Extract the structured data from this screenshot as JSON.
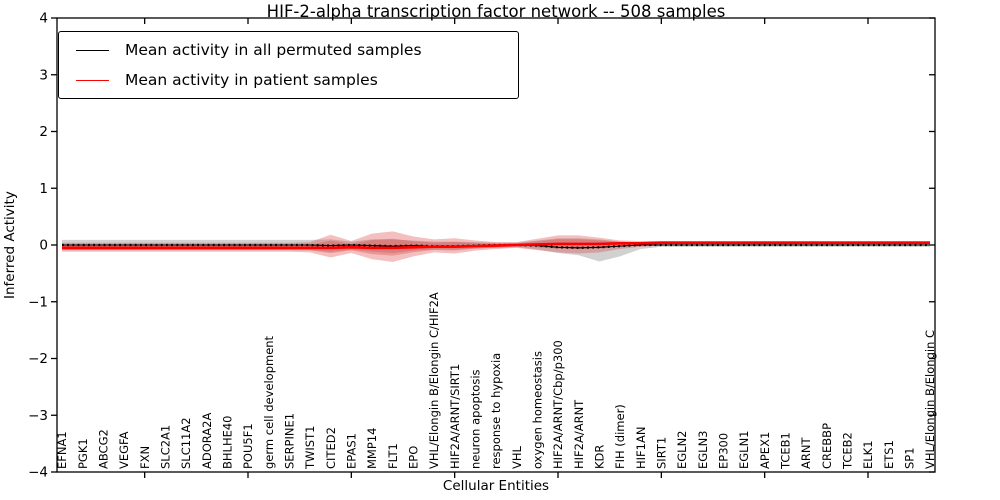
{
  "title": "HIF-2-alpha transcription factor network -- 508 samples",
  "legend": {
    "items": [
      {
        "label": "Mean activity in all permuted samples",
        "color": "#000000"
      },
      {
        "label": "Mean activity in patient samples",
        "color": "#ff0000"
      }
    ]
  },
  "axes": {
    "xlabel": "Cellular Entities",
    "ylabel": "Inferred Activity",
    "ytick_labels": [
      "4",
      "3",
      "2",
      "1",
      "0",
      "−1",
      "−2",
      "−3",
      "−4"
    ]
  },
  "chart_data": {
    "type": "line",
    "title": "HIF-2-alpha transcription factor network -- 508 samples",
    "xlabel": "Cellular Entities",
    "ylabel": "Inferred Activity",
    "ylim": [
      -4,
      4
    ],
    "yticks": [
      4,
      3,
      2,
      1,
      0,
      -1,
      -2,
      -3,
      -4
    ],
    "grid": false,
    "legend_position": "upper left",
    "x_major_tick_indices": [
      4,
      9,
      14,
      19,
      24,
      29,
      34,
      39
    ],
    "categories": [
      "EFNA1",
      "PGK1",
      "ABCG2",
      "VEGFA",
      "FXN",
      "SLC2A1",
      "SLC11A2",
      "ADORA2A",
      "BHLHE40",
      "POU5F1",
      "germ cell development",
      "SERPINE1",
      "TWIST1",
      "CITED2",
      "EPAS1",
      "MMP14",
      "FLT1",
      "EPO",
      "VHL/Elongin B/Elongin C/HIF2A",
      "HIF2A/ARNT/SIRT1",
      "neuron apoptosis",
      "response to hypoxia",
      "VHL",
      "oxygen homeostasis",
      "HIF2A/ARNT/Cbp/p300",
      "HIF2A/ARNT",
      "KDR",
      "FIH (dimer)",
      "HIF1AN",
      "SIRT1",
      "EGLN2",
      "EGLN3",
      "EP300",
      "EGLN1",
      "APEX1",
      "TCEB1",
      "ARNT",
      "CREBBP",
      "TCEB2",
      "ELK1",
      "ETS1",
      "SP1",
      "VHL/Elongin B/Elongin C"
    ],
    "series": [
      {
        "name": "Mean activity in all permuted samples",
        "color": "#000000",
        "style": "dotted",
        "values": [
          0,
          0,
          0,
          0,
          0,
          0,
          0,
          0,
          0,
          0,
          0,
          0,
          0,
          -0.01,
          0,
          -0.01,
          -0.02,
          -0.01,
          -0.02,
          -0.02,
          -0.01,
          0,
          0,
          -0.01,
          -0.04,
          -0.05,
          -0.04,
          -0.02,
          0,
          0,
          0,
          0,
          0,
          0,
          0,
          0,
          0,
          0,
          0,
          0,
          0,
          0,
          0
        ]
      },
      {
        "name": "Mean activity in patient samples",
        "color": "#ff0000",
        "style": "solid",
        "values": [
          -0.05,
          -0.05,
          -0.05,
          -0.05,
          -0.05,
          -0.05,
          -0.05,
          -0.05,
          -0.05,
          -0.05,
          -0.05,
          -0.05,
          -0.05,
          -0.05,
          -0.04,
          -0.05,
          -0.05,
          -0.04,
          -0.03,
          -0.03,
          -0.02,
          -0.01,
          0,
          0.01,
          0.02,
          0.02,
          0.02,
          0.03,
          0.03,
          0.04,
          0.04,
          0.04,
          0.04,
          0.04,
          0.04,
          0.04,
          0.04,
          0.04,
          0.04,
          0.04,
          0.04,
          0.04,
          0.04
        ]
      }
    ],
    "bands": [
      {
        "name": "permuted-sample-range",
        "color": "#999999",
        "opacity": 0.45,
        "lower": [
          -0.09,
          -0.09,
          -0.09,
          -0.09,
          -0.09,
          -0.09,
          -0.09,
          -0.09,
          -0.09,
          -0.09,
          -0.09,
          -0.09,
          -0.09,
          -0.12,
          -0.08,
          -0.12,
          -0.14,
          -0.1,
          -0.08,
          -0.08,
          -0.06,
          -0.05,
          -0.04,
          -0.08,
          -0.14,
          -0.18,
          -0.29,
          -0.2,
          -0.07,
          -0.03,
          -0.03,
          -0.03,
          -0.03,
          -0.03,
          -0.03,
          -0.03,
          -0.03,
          -0.03,
          -0.03,
          -0.03,
          -0.03,
          -0.03,
          -0.03
        ],
        "upper": [
          0.09,
          0.09,
          0.09,
          0.09,
          0.09,
          0.09,
          0.09,
          0.09,
          0.09,
          0.09,
          0.09,
          0.09,
          0.09,
          0.1,
          0.06,
          0.1,
          0.1,
          0.08,
          0.06,
          0.06,
          0.05,
          0.04,
          0.04,
          0.08,
          0.12,
          0.12,
          0.1,
          0.06,
          0.04,
          0.04,
          0.04,
          0.04,
          0.04,
          0.04,
          0.04,
          0.04,
          0.04,
          0.04,
          0.04,
          0.04,
          0.04,
          0.04,
          0.04
        ]
      },
      {
        "name": "patient-sample-range",
        "color": "#dd4444",
        "opacity": 0.34,
        "lower": [
          -0.12,
          -0.12,
          -0.12,
          -0.12,
          -0.12,
          -0.12,
          -0.12,
          -0.12,
          -0.12,
          -0.12,
          -0.12,
          -0.12,
          -0.13,
          -0.22,
          -0.14,
          -0.25,
          -0.3,
          -0.2,
          -0.13,
          -0.15,
          -0.1,
          -0.07,
          -0.05,
          -0.09,
          -0.13,
          -0.15,
          -0.13,
          -0.07,
          -0.03,
          -0.01,
          0,
          0,
          0,
          0,
          0,
          0,
          0,
          0,
          0,
          0,
          0,
          0,
          0
        ],
        "upper": [
          0.04,
          0.04,
          0.04,
          0.04,
          0.04,
          0.04,
          0.04,
          0.04,
          0.04,
          0.04,
          0.04,
          0.04,
          0.05,
          0.18,
          0.07,
          0.2,
          0.24,
          0.15,
          0.1,
          0.12,
          0.08,
          0.05,
          0.05,
          0.11,
          0.17,
          0.17,
          0.13,
          0.08,
          0.07,
          0.07,
          0.07,
          0.07,
          0.07,
          0.07,
          0.07,
          0.07,
          0.07,
          0.07,
          0.07,
          0.07,
          0.07,
          0.07,
          0.07
        ]
      }
    ]
  }
}
